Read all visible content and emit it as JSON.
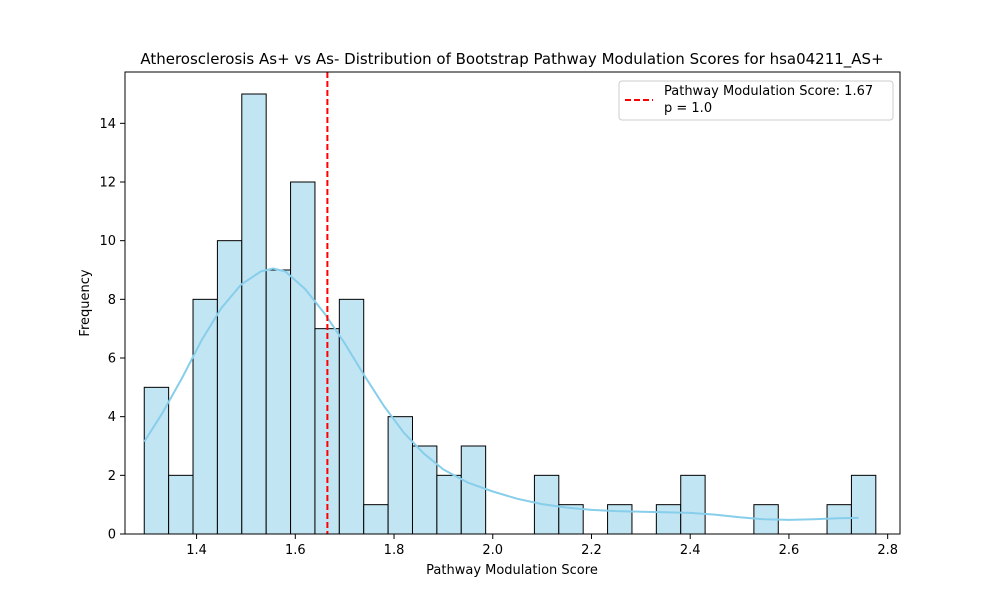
{
  "chart_data": {
    "type": "histogram",
    "title": "Atherosclerosis As+ vs As- Distribution of Bootstrap Pathway Modulation Scores for hsa04211_AS+",
    "xlabel": "Pathway Modulation Score",
    "ylabel": "Frequency",
    "xlim": [
      1.255,
      2.825
    ],
    "ylim": [
      0,
      15.75
    ],
    "xticks": [
      1.4,
      1.6,
      1.8,
      2.0,
      2.2,
      2.4,
      2.6,
      2.8
    ],
    "xtick_labels": [
      "1.4",
      "1.6",
      "1.8",
      "2.0",
      "2.2",
      "2.4",
      "2.6",
      "2.8"
    ],
    "yticks": [
      0,
      2,
      4,
      6,
      8,
      10,
      12,
      14
    ],
    "ytick_labels": [
      "0",
      "2",
      "4",
      "6",
      "8",
      "10",
      "12",
      "14"
    ],
    "grid": false,
    "bins": {
      "start": 1.294,
      "width": 0.0494,
      "counts": [
        5,
        2,
        8,
        10,
        15,
        9,
        12,
        7,
        8,
        1,
        4,
        3,
        2,
        3,
        0,
        0,
        2,
        1,
        0,
        1,
        0,
        1,
        2,
        0,
        0,
        1,
        0,
        0,
        1,
        2
      ]
    },
    "kde": {
      "x": [
        1.294,
        1.33,
        1.37,
        1.41,
        1.45,
        1.49,
        1.53,
        1.555,
        1.58,
        1.62,
        1.66,
        1.7,
        1.74,
        1.78,
        1.82,
        1.86,
        1.9,
        1.95,
        2.0,
        2.05,
        2.1,
        2.15,
        2.2,
        2.25,
        2.3,
        2.35,
        2.4,
        2.45,
        2.5,
        2.55,
        2.6,
        2.65,
        2.7,
        2.741
      ],
      "y": [
        3.15,
        4.1,
        5.3,
        6.6,
        7.7,
        8.5,
        8.95,
        9.05,
        8.95,
        8.35,
        7.5,
        6.5,
        5.4,
        4.35,
        3.45,
        2.75,
        2.2,
        1.75,
        1.45,
        1.2,
        1.02,
        0.9,
        0.82,
        0.78,
        0.76,
        0.74,
        0.72,
        0.66,
        0.57,
        0.5,
        0.48,
        0.5,
        0.54,
        0.55
      ]
    },
    "reference_line": {
      "x": 1.665,
      "label": "Pathway Modulation Score: 1.67",
      "style": "dashed"
    },
    "legend": {
      "placement": "top-right",
      "line1": "Pathway Modulation Score: 1.67",
      "line2": "p = 1.0"
    },
    "colors": {
      "bar_fill": "#c2e5f3",
      "bar_edge": "#000000",
      "kde_line": "#87ceeb",
      "reference_line": "#ff0000"
    }
  }
}
